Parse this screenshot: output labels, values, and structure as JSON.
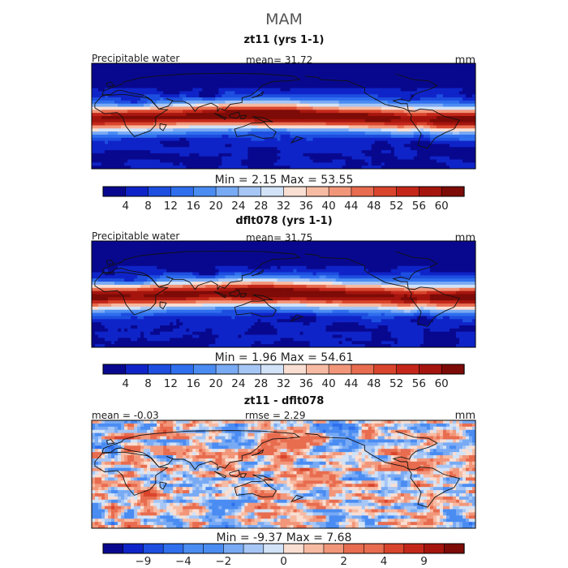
{
  "figure": {
    "season_title": "MAM"
  },
  "colors": {
    "ramp": [
      "#08088f",
      "#0f24c8",
      "#1d4ee0",
      "#2f6fee",
      "#4a8cf2",
      "#79aaf4",
      "#a6c6f5",
      "#d2e2f7",
      "#f9ded2",
      "#f7bba3",
      "#f2967a",
      "#e86c4f",
      "#d9452c",
      "#c4271a",
      "#a5150e",
      "#7d0b07"
    ],
    "land": "#111111",
    "frame": "#000000"
  },
  "chart_data": [
    {
      "type": "heatmap",
      "title": "zt11 (yrs 1-1)",
      "variable": "Precipitable water",
      "units": "mm",
      "stat_left": "",
      "stat_center": "mean=   31.72",
      "min_max_text": "Min =    2.15  Max =   53.55",
      "stats": {
        "mean": 31.72,
        "min": 2.15,
        "max": 53.55
      },
      "colorbar": {
        "levels": [
          4,
          8,
          12,
          16,
          20,
          24,
          28,
          32,
          36,
          40,
          44,
          48,
          52,
          56,
          60
        ],
        "tick_labels": [
          "4",
          "8",
          "12",
          "16",
          "20",
          "24",
          "28",
          "32",
          "36",
          "40",
          "44",
          "48",
          "52",
          "56",
          "60"
        ]
      },
      "x_range": [
        0,
        360
      ],
      "y_range": [
        -90,
        90
      ],
      "field": "absolute"
    },
    {
      "type": "heatmap",
      "title": "dflt078 (yrs 1-1)",
      "variable": "Precipitable water",
      "units": "mm",
      "stat_left": "",
      "stat_center": "mean=   31.75",
      "min_max_text": "Min =    1.96  Max =   54.61",
      "stats": {
        "mean": 31.75,
        "min": 1.96,
        "max": 54.61
      },
      "colorbar": {
        "levels": [
          4,
          8,
          12,
          16,
          20,
          24,
          28,
          32,
          36,
          40,
          44,
          48,
          52,
          56,
          60
        ],
        "tick_labels": [
          "4",
          "8",
          "12",
          "16",
          "20",
          "24",
          "28",
          "32",
          "36",
          "40",
          "44",
          "48",
          "52",
          "56",
          "60"
        ]
      },
      "x_range": [
        0,
        360
      ],
      "y_range": [
        -90,
        90
      ],
      "field": "absolute"
    },
    {
      "type": "heatmap",
      "title": "zt11 - dflt078",
      "variable": "",
      "units": "mm",
      "stat_left": "mean =   -0.03",
      "stat_center": "rmse =    2.29",
      "min_max_text": "Min =    -9.37  Max =     7.68",
      "stats": {
        "mean": -0.03,
        "rmse": 2.29,
        "min": -9.37,
        "max": 7.68
      },
      "colorbar": {
        "levels": [
          -12,
          -9,
          -6,
          -4,
          -3,
          -2,
          -1,
          -0.5,
          0,
          0.5,
          1,
          2,
          3,
          4,
          6,
          9,
          12
        ],
        "tick_labels": [
          "-9",
          "-4",
          "-2",
          "0",
          "2",
          "4",
          "9"
        ]
      },
      "x_range": [
        0,
        360
      ],
      "y_range": [
        -90,
        90
      ],
      "field": "difference"
    }
  ]
}
